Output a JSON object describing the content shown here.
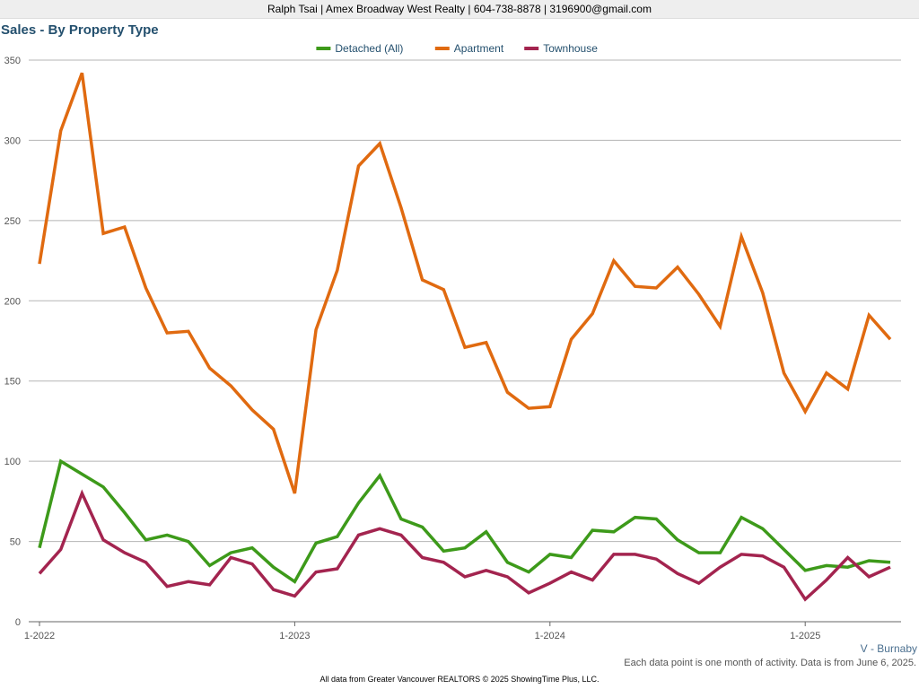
{
  "header": {
    "text": "Ralph Tsai | Amex Broadway West Realty | 604-738-8878 | 3196900@gmail.com"
  },
  "region_label": "V - Burnaby",
  "note": "Each data point is one month of activity. Data is from June 6, 2025.",
  "footer": "All data from Greater Vancouver REALTORS © 2025 ShowingTime Plus, LLC.",
  "chart_data": {
    "type": "line",
    "title": "Sales - By Property Type",
    "xlabel": "",
    "ylabel": "",
    "ylim": [
      0,
      350
    ],
    "yticks": [
      0,
      50,
      100,
      150,
      200,
      250,
      300,
      350
    ],
    "grid": true,
    "legend_position": "top-center",
    "x": [
      "1-2022",
      "2-2022",
      "3-2022",
      "4-2022",
      "5-2022",
      "6-2022",
      "7-2022",
      "8-2022",
      "9-2022",
      "10-2022",
      "11-2022",
      "12-2022",
      "1-2023",
      "2-2023",
      "3-2023",
      "4-2023",
      "5-2023",
      "6-2023",
      "7-2023",
      "8-2023",
      "9-2023",
      "10-2023",
      "11-2023",
      "12-2023",
      "1-2024",
      "2-2024",
      "3-2024",
      "4-2024",
      "5-2024",
      "6-2024",
      "7-2024",
      "8-2024",
      "9-2024",
      "10-2024",
      "11-2024",
      "12-2024",
      "1-2025",
      "2-2025",
      "3-2025",
      "4-2025",
      "5-2025"
    ],
    "xtick_labels": [
      "1-2022",
      "1-2023",
      "1-2024",
      "1-2025"
    ],
    "series": [
      {
        "name": "Detached (All)",
        "color": "#3d9a1a",
        "values": [
          46,
          100,
          92,
          84,
          68,
          51,
          54,
          50,
          35,
          43,
          46,
          34,
          25,
          49,
          53,
          74,
          91,
          64,
          59,
          44,
          46,
          56,
          37,
          31,
          42,
          40,
          57,
          56,
          65,
          64,
          51,
          43,
          43,
          65,
          58,
          45,
          32,
          35,
          34,
          38,
          37
        ]
      },
      {
        "name": "Apartment",
        "color": "#e06a10",
        "values": [
          223,
          306,
          342,
          242,
          246,
          208,
          180,
          181,
          158,
          147,
          132,
          120,
          80,
          182,
          219,
          284,
          298,
          258,
          213,
          207,
          171,
          174,
          143,
          133,
          134,
          176,
          192,
          225,
          209,
          208,
          221,
          204,
          184,
          240,
          205,
          155,
          131,
          155,
          145,
          191,
          176
        ]
      },
      {
        "name": "Townhouse",
        "color": "#a3244f",
        "values": [
          30,
          45,
          80,
          51,
          43,
          37,
          22,
          25,
          23,
          40,
          36,
          20,
          16,
          31,
          33,
          54,
          58,
          54,
          40,
          37,
          28,
          32,
          28,
          18,
          24,
          31,
          26,
          42,
          42,
          39,
          30,
          24,
          34,
          42,
          41,
          34,
          14,
          26,
          40,
          28,
          34
        ]
      }
    ]
  }
}
